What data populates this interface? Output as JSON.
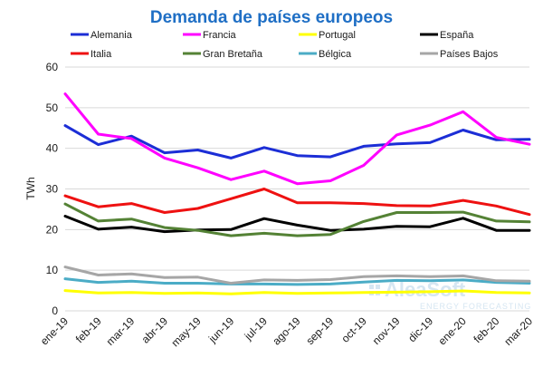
{
  "chart_data": {
    "type": "line",
    "title": "Demanda de países europeos",
    "ylabel": "TWh",
    "xlabel": "",
    "ylim": [
      0,
      60
    ],
    "yticks": [
      0,
      10,
      20,
      30,
      40,
      50,
      60
    ],
    "grid": true,
    "legend_position": "top",
    "categories": [
      "ene-19",
      "feb-19",
      "mar-19",
      "abr-19",
      "may-19",
      "jun-19",
      "jul-19",
      "ago-19",
      "sep-19",
      "oct-19",
      "nov-19",
      "dic-19",
      "ene-20",
      "feb-20",
      "mar-20"
    ],
    "series": [
      {
        "name": "Alemania",
        "color": "#1c2ed6",
        "values": [
          45.6,
          40.9,
          43.0,
          38.9,
          39.6,
          37.6,
          40.2,
          38.2,
          37.9,
          40.5,
          41.1,
          41.4,
          44.5,
          42.1,
          42.2
        ]
      },
      {
        "name": "Francia",
        "color": "#ff00ff",
        "values": [
          53.4,
          43.5,
          42.4,
          37.6,
          35.2,
          32.3,
          34.4,
          31.3,
          32.0,
          35.8,
          43.3,
          45.7,
          49.0,
          42.7,
          41.0
        ]
      },
      {
        "name": "Portugal",
        "color": "#ffff00",
        "values": [
          5.0,
          4.4,
          4.5,
          4.3,
          4.4,
          4.2,
          4.5,
          4.3,
          4.4,
          4.5,
          4.6,
          4.7,
          4.9,
          4.5,
          4.4
        ]
      },
      {
        "name": "España",
        "color": "#000000",
        "values": [
          23.3,
          20.1,
          20.6,
          19.5,
          19.9,
          20.0,
          22.7,
          21.1,
          19.8,
          20.1,
          20.8,
          20.7,
          22.8,
          19.8,
          19.8
        ]
      },
      {
        "name": "Italia",
        "color": "#ee1111",
        "values": [
          28.3,
          25.6,
          26.4,
          24.2,
          25.2,
          27.6,
          30.0,
          26.6,
          26.6,
          26.4,
          25.9,
          25.8,
          27.2,
          25.8,
          23.7
        ]
      },
      {
        "name": "Gran Bretaña",
        "color": "#548235",
        "values": [
          26.3,
          22.1,
          22.6,
          20.5,
          19.8,
          18.5,
          19.1,
          18.5,
          18.8,
          22.0,
          24.2,
          24.2,
          24.3,
          22.1,
          21.9
        ]
      },
      {
        "name": "Bélgica",
        "color": "#4bacc6",
        "values": [
          7.9,
          7.0,
          7.3,
          6.8,
          6.8,
          6.6,
          6.6,
          6.5,
          6.6,
          7.1,
          7.5,
          7.4,
          7.6,
          7.0,
          6.8
        ]
      },
      {
        "name": "Países Bajos",
        "color": "#a6a6a6",
        "values": [
          10.8,
          8.8,
          9.1,
          8.2,
          8.3,
          6.8,
          7.6,
          7.5,
          7.7,
          8.4,
          8.6,
          8.4,
          8.6,
          7.4,
          7.3
        ]
      }
    ]
  },
  "watermark": {
    "brand": "AleaSoft",
    "tagline": "ENERGY FORECASTING"
  }
}
